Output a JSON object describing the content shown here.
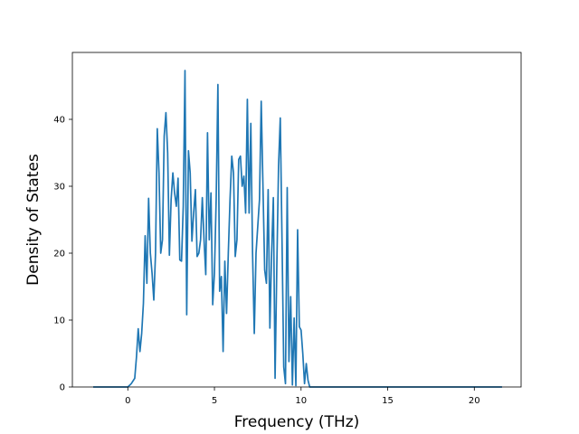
{
  "chart_data": {
    "type": "line",
    "title": "",
    "xlabel": "Frequency (THz)",
    "ylabel": "Density of States",
    "xlim": [
      -3.2,
      22.7
    ],
    "ylim": [
      0,
      50
    ],
    "xticks": [
      0,
      5,
      10,
      15,
      20
    ],
    "yticks": [
      0,
      10,
      20,
      30,
      40
    ],
    "grid": false,
    "legend": "none",
    "series": [
      {
        "color": "#1f77b4",
        "x": [
          -2.0,
          0.0,
          0.2,
          0.4,
          0.5,
          0.6,
          0.7,
          0.8,
          0.9,
          1.0,
          1.1,
          1.2,
          1.3,
          1.4,
          1.5,
          1.6,
          1.7,
          1.8,
          1.9,
          2.0,
          2.1,
          2.2,
          2.3,
          2.4,
          2.5,
          2.6,
          2.7,
          2.8,
          2.9,
          3.0,
          3.1,
          3.2,
          3.3,
          3.4,
          3.5,
          3.6,
          3.7,
          3.8,
          3.9,
          4.0,
          4.1,
          4.2,
          4.3,
          4.4,
          4.5,
          4.6,
          4.7,
          4.8,
          4.9,
          5.0,
          5.1,
          5.2,
          5.3,
          5.4,
          5.5,
          5.6,
          5.7,
          5.8,
          5.9,
          6.0,
          6.1,
          6.2,
          6.3,
          6.4,
          6.5,
          6.6,
          6.7,
          6.8,
          6.9,
          7.0,
          7.1,
          7.2,
          7.3,
          7.4,
          7.5,
          7.6,
          7.7,
          7.8,
          7.9,
          8.0,
          8.1,
          8.2,
          8.3,
          8.4,
          8.5,
          8.6,
          8.7,
          8.8,
          8.9,
          9.0,
          9.1,
          9.2,
          9.3,
          9.4,
          9.5,
          9.6,
          9.7,
          9.8,
          9.9,
          10.0,
          10.1,
          10.2,
          10.3,
          10.4,
          10.5,
          10.6,
          10.7,
          10.8,
          10.9,
          11.0,
          11.1,
          11.2,
          11.3,
          11.4,
          11.5,
          11.6,
          11.7,
          11.8,
          11.9,
          12.0,
          12.1,
          12.3,
          12.5,
          21.6
        ],
        "y": [
          0,
          0,
          0.5,
          1.3,
          4.5,
          8.7,
          5.3,
          8.0,
          12.5,
          22.6,
          15.5,
          28.2,
          20.0,
          17.0,
          13.0,
          20.0,
          38.6,
          32.0,
          20.0,
          22.0,
          37.5,
          41.0,
          35.0,
          19.7,
          28.0,
          32.0,
          29.0,
          27.0,
          31.2,
          19.0,
          18.8,
          27.0,
          47.3,
          10.8,
          35.3,
          32.0,
          21.8,
          26.0,
          29.5,
          19.5,
          20.0,
          22.0,
          28.3,
          22.0,
          16.8,
          38.0,
          22.0,
          29.0,
          12.3,
          17.0,
          28.0,
          45.2,
          14.3,
          16.5,
          5.3,
          18.8,
          11.0,
          20.0,
          28.0,
          34.5,
          32.0,
          19.5,
          22.0,
          34.0,
          34.5,
          30.0,
          31.5,
          26.0,
          43.0,
          26.0,
          39.4,
          20.0,
          8.0,
          20.0,
          24.0,
          28.0,
          42.7,
          30.0,
          17.5,
          15.5,
          29.5,
          8.8,
          20.0,
          28.3,
          1.3,
          18.0,
          33.0,
          40.2,
          22.0,
          3.0,
          0.5,
          29.8,
          3.8,
          13.5,
          0.3,
          10.3,
          0.2,
          23.5,
          9.0,
          8.5,
          5.0,
          0.5,
          3.5,
          1.0,
          0,
          0,
          0,
          0,
          0,
          0,
          0,
          0,
          0,
          0,
          0,
          0,
          0,
          0,
          0,
          0,
          0,
          0,
          0,
          0
        ]
      }
    ]
  }
}
